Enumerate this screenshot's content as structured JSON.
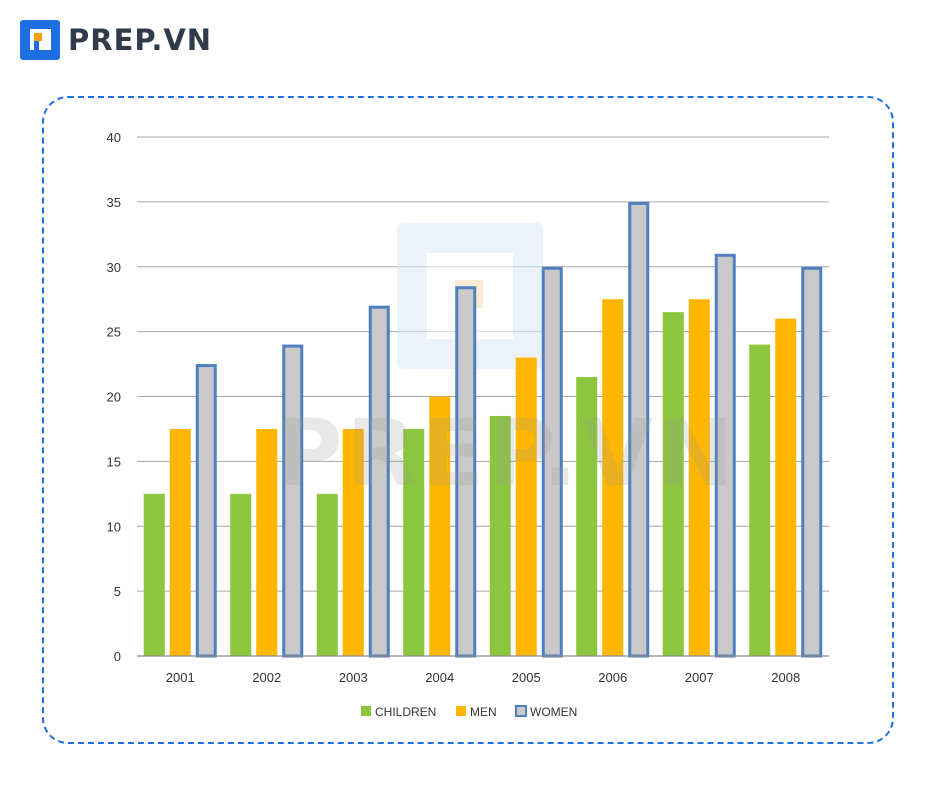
{
  "brand": {
    "name": "PREP.VN",
    "logo_icon": "prep-logo-icon",
    "accent": "#1e6fe0"
  },
  "watermark": {
    "text": "PREP.VN"
  },
  "colors": {
    "children": "#8cc63f",
    "men": "#ffb600",
    "women_fill": "#c9c9c9",
    "women_stroke": "#4f7fbf",
    "grid": "#a6a6a6",
    "frame": "#1e6fe0"
  },
  "chart_data": {
    "type": "bar",
    "title": "",
    "xlabel": "",
    "ylabel": "",
    "categories": [
      "2001",
      "2002",
      "2003",
      "2004",
      "2005",
      "2006",
      "2007",
      "2008"
    ],
    "series": [
      {
        "name": "CHILDREN",
        "values": [
          12.5,
          12.5,
          12.5,
          17.5,
          18.5,
          21.5,
          26.5,
          24
        ]
      },
      {
        "name": "MEN",
        "values": [
          17.5,
          17.5,
          17.5,
          20,
          23,
          27.5,
          27.5,
          26
        ]
      },
      {
        "name": "WOMEN",
        "values": [
          22.5,
          24,
          27,
          28.5,
          30,
          35,
          31,
          30
        ]
      }
    ],
    "ylim": [
      0,
      40
    ],
    "yticks": [
      "0",
      "5",
      "10",
      "15",
      "20",
      "25",
      "30",
      "35",
      "40"
    ],
    "grid": true,
    "legend": "bottom-center"
  }
}
